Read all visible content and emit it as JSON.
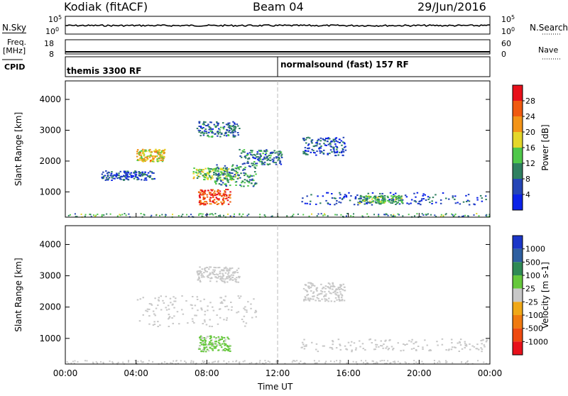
{
  "header": {
    "station": "Kodiak (fitACF)",
    "beam": "Beam 04",
    "date": "29/Jun/2016"
  },
  "nsky_panel": {
    "left_label": "N.Sky",
    "right_label": "N.Search",
    "left_ticks": [
      "10^5",
      "10^0"
    ],
    "right_ticks": [
      "10^5",
      "10^0"
    ]
  },
  "freq_panel": {
    "left_label_line1": "Freq.",
    "left_label_line2": "[MHz]",
    "right_label": "Nave",
    "left_ticks": [
      "18",
      "8"
    ],
    "right_ticks": [
      "60",
      "0"
    ]
  },
  "cpid_panel": {
    "label": "CPID",
    "modes": [
      "themis 3300 RF",
      "normalsound (fast) 157 RF"
    ],
    "mode_change_time_hours": 12.0
  },
  "time_axis": {
    "xlabel": "Time UT",
    "ticks": [
      "00:00",
      "04:00",
      "08:00",
      "12:00",
      "16:00",
      "20:00",
      "00:00"
    ]
  },
  "chart_data": [
    {
      "type": "heatmap",
      "panel": "power",
      "x_range_hours": [
        0,
        24
      ],
      "ylabel": "Slant Range [km]",
      "ylim": [
        180,
        4600
      ],
      "y_ticks": [
        "1000",
        "2000",
        "3000",
        "4000"
      ],
      "colorbar": {
        "label": "Power [dB]",
        "ticks": [
          "4",
          "8",
          "12",
          "16",
          "20",
          "24",
          "28"
        ],
        "range": [
          0,
          30
        ],
        "colors": [
          "#0b22e8",
          "#2545b6",
          "#2f8060",
          "#4fc84a",
          "#e4d72a",
          "#f39418",
          "#f05a10",
          "#e8111b"
        ]
      },
      "features": [
        {
          "t0": 7.2,
          "t1": 9.8,
          "r0": 1400,
          "r1": 1800,
          "level": 14
        },
        {
          "t0": 4.0,
          "t1": 5.6,
          "r0": 2000,
          "r1": 2400,
          "level": 18
        },
        {
          "t0": 7.5,
          "t1": 9.3,
          "r0": 600,
          "r1": 1100,
          "level": 26
        },
        {
          "t0": 8.4,
          "t1": 10.8,
          "r0": 1200,
          "r1": 1900,
          "level": 10
        },
        {
          "t0": 9.8,
          "t1": 12.2,
          "r0": 1900,
          "r1": 2400,
          "level": 8
        },
        {
          "t0": 7.4,
          "t1": 9.8,
          "r0": 2800,
          "r1": 3300,
          "level": 8
        },
        {
          "t0": 13.4,
          "t1": 15.8,
          "r0": 2200,
          "r1": 2800,
          "level": 6
        },
        {
          "t0": 13.3,
          "t1": 23.8,
          "r0": 600,
          "r1": 1000,
          "level": 5
        },
        {
          "t0": 16.5,
          "t1": 19.0,
          "r0": 650,
          "r1": 900,
          "level": 12
        },
        {
          "t0": 2.0,
          "t1": 5.0,
          "r0": 1400,
          "r1": 1700,
          "level": 6
        }
      ]
    },
    {
      "type": "heatmap",
      "panel": "velocity",
      "x_range_hours": [
        0,
        24
      ],
      "ylabel": "Slant Range [km]",
      "ylim": [
        180,
        4600
      ],
      "y_ticks": [
        "1000",
        "2000",
        "3000",
        "4000"
      ],
      "colorbar": {
        "label": "Velocity [m s-1]",
        "ticks": [
          "1000",
          "500",
          "100",
          "25",
          "-25",
          "-100",
          "-500",
          "-1000"
        ],
        "range": [
          -1000,
          1000
        ],
        "colors": [
          "#1b36c8",
          "#2e5fa0",
          "#2f8a55",
          "#66c83c",
          "#c8c8c8",
          "#f0a818",
          "#f07a10",
          "#ee4a10",
          "#e8111b"
        ]
      },
      "features": [
        {
          "t0": 4.0,
          "t1": 10.8,
          "r0": 1400,
          "r1": 2400,
          "level": 0
        },
        {
          "t0": 7.5,
          "t1": 9.3,
          "r0": 600,
          "r1": 1100,
          "level": 150
        },
        {
          "t0": 7.4,
          "t1": 9.8,
          "r0": 2800,
          "r1": 3300,
          "level": 0
        },
        {
          "t0": 13.3,
          "t1": 23.8,
          "r0": 600,
          "r1": 1000,
          "level": 0
        },
        {
          "t0": 13.4,
          "t1": 15.8,
          "r0": 2200,
          "r1": 2800,
          "level": 0
        }
      ]
    }
  ]
}
